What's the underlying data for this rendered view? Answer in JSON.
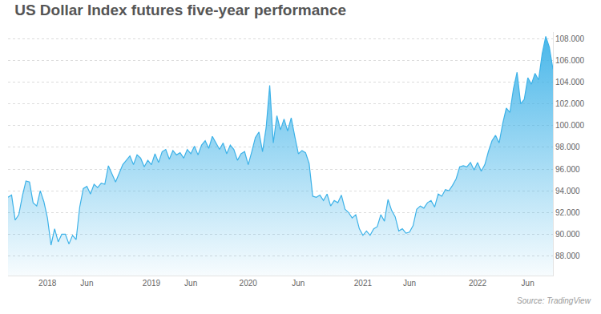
{
  "chart_data": {
    "type": "area",
    "title": "US Dollar Index futures five-year performance",
    "annotations": [
      "Source: TradingView"
    ],
    "color": "#3db2e8",
    "grid": true,
    "categories": [
      null,
      null,
      null,
      null,
      null,
      null,
      null,
      null,
      null,
      null,
      null,
      "2018",
      null,
      null,
      null,
      null,
      null,
      null,
      null,
      null,
      null,
      null,
      "Jun",
      null,
      null,
      null,
      null,
      null,
      null,
      null,
      null,
      null,
      null,
      null,
      null,
      null,
      null,
      null,
      null,
      null,
      "2019",
      null,
      null,
      null,
      null,
      null,
      null,
      null,
      null,
      null,
      null,
      "Jun",
      null,
      null,
      null,
      null,
      null,
      null,
      null,
      null,
      null,
      null,
      null,
      null,
      null,
      null,
      null,
      "2020",
      null,
      null,
      null,
      null,
      null,
      null,
      null,
      null,
      null,
      null,
      null,
      null,
      null,
      "Jun",
      null,
      null,
      null,
      null,
      null,
      null,
      null,
      null,
      null,
      null,
      null,
      null,
      null,
      null,
      null,
      null,
      null,
      "2021",
      null,
      null,
      null,
      null,
      null,
      null,
      null,
      null,
      null,
      null,
      null,
      null,
      "Jun",
      null,
      null,
      null,
      null,
      null,
      null,
      null,
      null,
      null,
      null,
      null,
      null,
      null,
      null,
      null,
      null,
      null,
      null,
      "2022",
      null,
      null,
      null,
      null,
      null,
      null,
      null,
      null,
      null,
      null,
      null,
      null,
      null,
      "Jun",
      null,
      null,
      null,
      null,
      null,
      null,
      null
    ],
    "values": [
      93.4,
      93.6,
      91.3,
      91.8,
      93.5,
      94.9,
      94.8,
      92.9,
      92.6,
      94.0,
      93.0,
      91.5,
      89.0,
      90.5,
      89.3,
      90.0,
      90.0,
      89.1,
      89.9,
      89.5,
      92.5,
      94.2,
      94.4,
      93.7,
      94.6,
      94.3,
      94.7,
      94.6,
      96.3,
      95.5,
      94.8,
      95.6,
      96.4,
      96.8,
      97.2,
      96.4,
      97.3,
      97.0,
      96.2,
      96.8,
      96.4,
      97.4,
      96.6,
      97.6,
      97.8,
      96.9,
      97.7,
      97.3,
      97.5,
      97.0,
      97.8,
      97.4,
      98.1,
      97.3,
      98.2,
      98.6,
      97.9,
      99.0,
      98.4,
      97.8,
      98.4,
      97.4,
      98.2,
      97.8,
      96.8,
      97.4,
      97.6,
      96.4,
      97.6,
      98.9,
      99.4,
      97.6,
      99.8,
      103.7,
      98.4,
      100.9,
      99.6,
      100.6,
      99.5,
      100.7,
      99.0,
      97.4,
      97.7,
      97.5,
      96.5,
      93.5,
      93.4,
      93.6,
      93.1,
      93.7,
      92.6,
      93.1,
      92.9,
      93.6,
      92.3,
      92.0,
      91.5,
      91.8,
      90.5,
      89.9,
      90.3,
      89.9,
      90.5,
      90.7,
      91.8,
      91.2,
      93.2,
      92.2,
      91.6,
      90.3,
      90.5,
      90.1,
      90.2,
      90.8,
      92.3,
      92.6,
      92.4,
      92.9,
      93.1,
      92.5,
      93.7,
      93.5,
      94.1,
      94.0,
      94.5,
      95.1,
      96.2,
      96.3,
      96.2,
      96.6,
      95.9,
      96.6,
      95.8,
      96.4,
      97.6,
      98.6,
      99.1,
      98.4,
      100.2,
      101.6,
      101.2,
      103.4,
      104.9,
      102.0,
      102.4,
      104.4,
      103.8,
      104.8,
      104.2,
      106.6,
      108.2,
      107.2,
      105.2
    ],
    "ylim": [
      86.2,
      108.6
    ],
    "yticks": [
      {
        "value": 88,
        "label": "88.000"
      },
      {
        "value": 90,
        "label": "90.000"
      },
      {
        "value": 92,
        "label": "92.000"
      },
      {
        "value": 94,
        "label": "94.000"
      },
      {
        "value": 96,
        "label": "96.000"
      },
      {
        "value": 98,
        "label": "98.000"
      },
      {
        "value": 100,
        "label": "100.000"
      },
      {
        "value": 102,
        "label": "102.000"
      },
      {
        "value": 104,
        "label": "104.000"
      },
      {
        "value": 106,
        "label": "106.000"
      },
      {
        "value": 108,
        "label": "108.000"
      }
    ]
  }
}
